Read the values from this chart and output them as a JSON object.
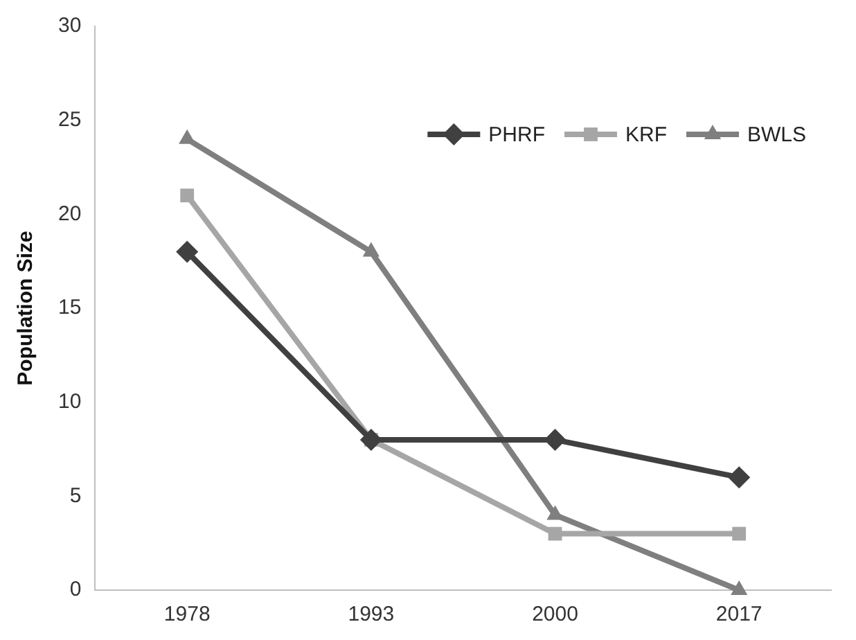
{
  "chart_data": {
    "type": "line",
    "ylabel": "Population Size",
    "categories": [
      "1978",
      "1993",
      "2000",
      "2017"
    ],
    "series": [
      {
        "name": "PHRF",
        "color": "#404040",
        "marker": "diamond",
        "values": [
          18,
          8,
          8,
          6
        ]
      },
      {
        "name": "KRF",
        "color": "#a6a6a6",
        "marker": "square",
        "values": [
          21,
          8,
          3,
          3
        ]
      },
      {
        "name": "BWLS",
        "color": "#7f7f7f",
        "marker": "triangle",
        "values": [
          24,
          18,
          4,
          0
        ]
      }
    ],
    "ylim": [
      0,
      30
    ],
    "yticks": [
      0,
      5,
      10,
      15,
      20,
      25,
      30
    ],
    "grid": false,
    "legend": "top right",
    "line_style": "solid"
  }
}
